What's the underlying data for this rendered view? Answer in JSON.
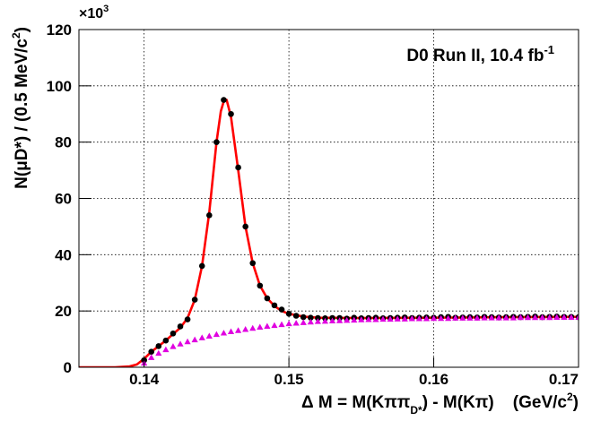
{
  "chart_data": {
    "type": "scatter",
    "annotation_parts": [
      "D0 Run II, 10.4 fb",
      "-1"
    ],
    "multiplier_parts": [
      "×10",
      "3"
    ],
    "x_label_parts": [
      "Δ M = M(Kππ",
      "D*",
      ") - M(Kπ)    (GeV/c",
      "2",
      ")"
    ],
    "y_label_parts": [
      "N(μD*) / (0.5 MeV/c",
      "2",
      ")"
    ],
    "xlim": [
      0.1355,
      0.17
    ],
    "ylim": [
      0,
      120
    ],
    "xticks": [
      0.14,
      0.15,
      0.16,
      0.17
    ],
    "yticks": [
      0,
      20,
      40,
      60,
      80,
      100,
      120
    ],
    "grid": true,
    "series": [
      {
        "color": "#ff0000",
        "marker": "line",
        "x": [
          0.1355,
          0.138,
          0.139,
          0.1395,
          0.14,
          0.1405,
          0.141,
          0.1415,
          0.142,
          0.1425,
          0.143,
          0.1435,
          0.144,
          0.1445,
          0.145,
          0.1453,
          0.1455,
          0.1457,
          0.146,
          0.1465,
          0.147,
          0.1475,
          0.148,
          0.1485,
          0.149,
          0.1495,
          0.15,
          0.151,
          0.152,
          0.155,
          0.16,
          0.165,
          0.17
        ],
        "values": [
          0,
          0,
          0.3,
          1,
          3,
          5.5,
          7.5,
          9.5,
          11.8,
          14,
          17.5,
          24,
          36,
          55,
          80,
          91,
          94.5,
          95,
          89,
          70,
          50,
          37,
          29,
          24.5,
          21.8,
          20,
          19,
          18,
          17.6,
          17.5,
          17.6,
          17.8,
          17.9
        ]
      },
      {
        "color": "#000000",
        "marker": "circle",
        "x": [
          0.14,
          0.1405,
          0.141,
          0.1415,
          0.142,
          0.1425,
          0.143,
          0.1435,
          0.144,
          0.1445,
          0.145,
          0.1455,
          0.146,
          0.1465,
          0.147,
          0.1475,
          0.148,
          0.1485,
          0.149,
          0.1495,
          0.15,
          0.1505,
          0.151,
          0.1515,
          0.152,
          0.1525,
          0.153,
          0.1535,
          0.154,
          0.1545,
          0.155,
          0.1555,
          0.156,
          0.1565,
          0.157,
          0.1575,
          0.158,
          0.1585,
          0.159,
          0.1595,
          0.16,
          0.1605,
          0.161,
          0.1615,
          0.162,
          0.1625,
          0.163,
          0.1635,
          0.164,
          0.1645,
          0.165,
          0.1655,
          0.166,
          0.1665,
          0.167,
          0.1675,
          0.168,
          0.1685,
          0.169,
          0.1695,
          0.17
        ],
        "values": [
          2.5,
          5.5,
          7.5,
          9.5,
          12,
          14.5,
          17,
          24,
          36,
          54,
          80,
          95,
          90,
          71,
          50,
          37,
          29,
          24.5,
          22,
          20.5,
          19,
          18.3,
          17.8,
          17.6,
          17.5,
          17.4,
          17.5,
          17.5,
          17.3,
          17.6,
          17.4,
          17.5,
          17.6,
          17.4,
          17.5,
          17.6,
          17.7,
          17.5,
          17.6,
          17.7,
          17.6,
          17.8,
          17.9,
          17.6,
          17.7,
          17.8,
          17.7,
          17.9,
          17.8,
          17.7,
          17.8,
          17.9,
          17.8,
          17.9,
          18.0,
          17.8,
          17.9,
          18.0,
          17.9,
          17.9,
          17.8
        ]
      },
      {
        "color": "#e000e0",
        "marker": "triangle",
        "x": [
          0.14,
          0.1405,
          0.141,
          0.1415,
          0.142,
          0.1425,
          0.143,
          0.1435,
          0.144,
          0.1445,
          0.145,
          0.1455,
          0.146,
          0.1465,
          0.147,
          0.1475,
          0.148,
          0.1485,
          0.149,
          0.1495,
          0.15,
          0.1505,
          0.151,
          0.1515,
          0.152,
          0.1525,
          0.153,
          0.1535,
          0.154,
          0.1545,
          0.155,
          0.1555,
          0.156,
          0.1565,
          0.157,
          0.1575,
          0.158,
          0.1585,
          0.159,
          0.1595,
          0.16,
          0.1605,
          0.161,
          0.1615,
          0.162,
          0.1625,
          0.163,
          0.1635,
          0.164,
          0.1645,
          0.165,
          0.1655,
          0.166,
          0.1665,
          0.167,
          0.1675,
          0.168,
          0.1685,
          0.169,
          0.1695,
          0.17
        ],
        "values": [
          1.5,
          3.5,
          5,
          6.3,
          7.4,
          8.3,
          9.1,
          9.8,
          10.5,
          11.1,
          11.7,
          12.2,
          12.7,
          13.1,
          13.5,
          13.9,
          14.3,
          14.6,
          14.9,
          15.2,
          15.5,
          15.7,
          15.9,
          16.1,
          16.3,
          16.4,
          16.5,
          16.6,
          16.7,
          16.8,
          16.9,
          17.0,
          17.0,
          17.1,
          17.1,
          17.2,
          17.2,
          17.3,
          17.3,
          17.3,
          17.4,
          17.4,
          17.4,
          17.5,
          17.5,
          17.5,
          17.5,
          17.6,
          17.6,
          17.6,
          17.6,
          17.6,
          17.7,
          17.7,
          17.7,
          17.7,
          17.7,
          17.8,
          17.8,
          17.8,
          17.8
        ]
      }
    ]
  }
}
